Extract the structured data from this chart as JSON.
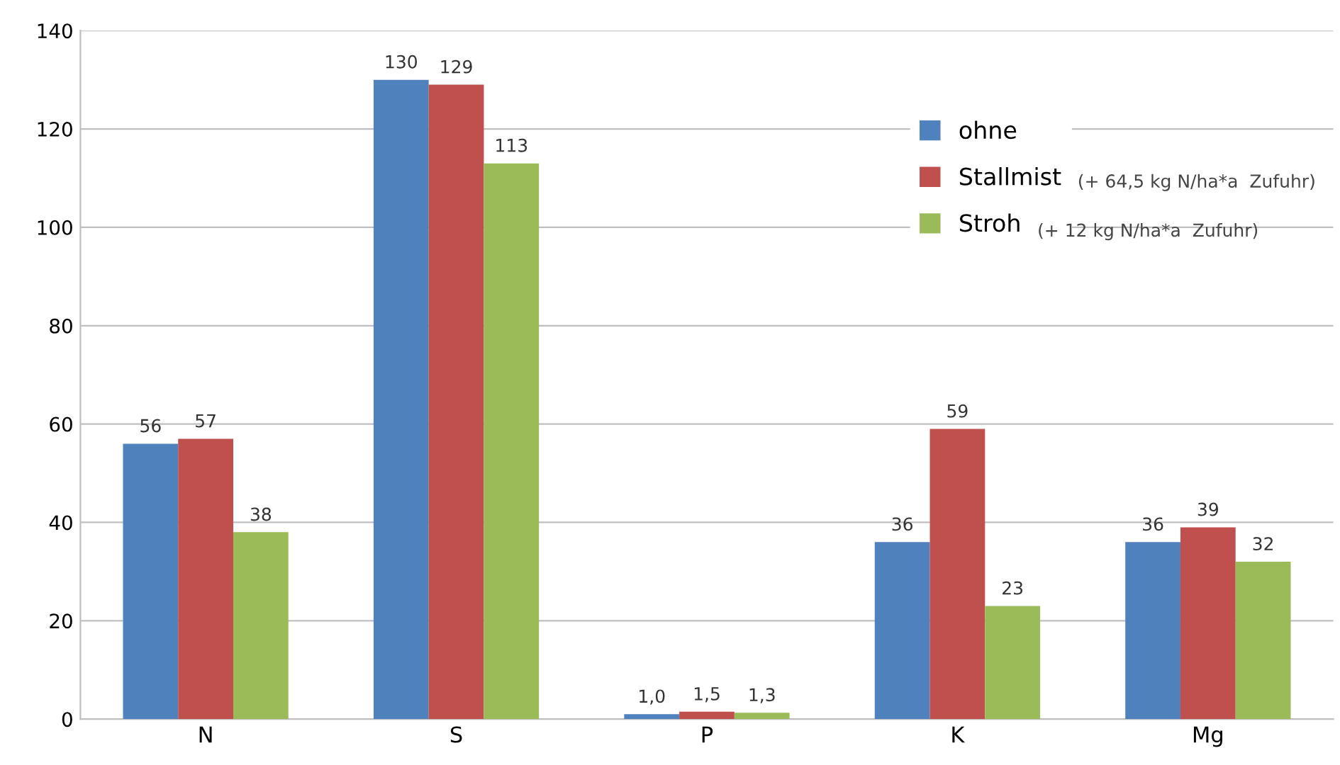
{
  "chart_data": {
    "type": "bar",
    "categories": [
      "N",
      "S",
      "P",
      "K",
      "Mg"
    ],
    "series": [
      {
        "name": "ohne",
        "color": "#4f81bd",
        "values": [
          56,
          130,
          1.0,
          36,
          36
        ],
        "value_labels": [
          "56",
          "130",
          "1,0",
          "36",
          "36"
        ]
      },
      {
        "name": "Stallmist",
        "color": "#c0504d",
        "values": [
          57,
          129,
          1.5,
          59,
          39
        ],
        "value_labels": [
          "57",
          "129",
          "1,5",
          "59",
          "39"
        ]
      },
      {
        "name": "Stroh",
        "color": "#9bbb59",
        "values": [
          38,
          113,
          1.3,
          23,
          32
        ],
        "value_labels": [
          "38",
          "113",
          "1,3",
          "23",
          "32"
        ]
      }
    ],
    "annotations": [
      "(+ 64,5 kg N/ha*a  Zufuhr)",
      "(+ 12 kg N/ha*a  Zufuhr)"
    ],
    "ylim": [
      0,
      140
    ],
    "yticks": [
      0,
      20,
      40,
      60,
      80,
      100,
      120,
      140
    ],
    "grid": "y",
    "legend": "top right"
  }
}
